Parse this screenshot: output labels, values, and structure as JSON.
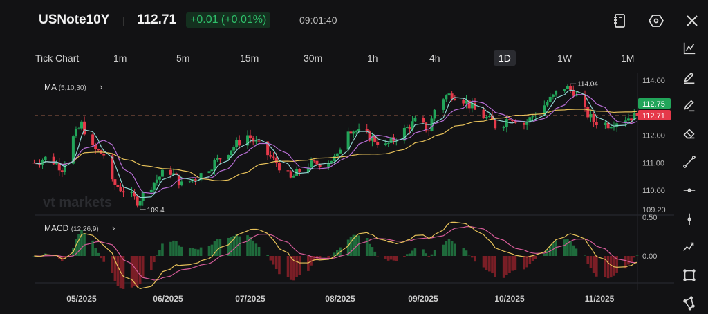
{
  "header": {
    "symbol": "USNote10Y",
    "price": "112.71",
    "change": "+0.01 (+0.01%)",
    "time": "09:01:40",
    "icons": [
      "notebook-icon",
      "settings-hexagon-icon",
      "close-icon"
    ]
  },
  "timeframes": [
    {
      "label": "Tick Chart"
    },
    {
      "label": "1m"
    },
    {
      "label": "5m"
    },
    {
      "label": "15m"
    },
    {
      "label": "30m"
    },
    {
      "label": "1h"
    },
    {
      "label": "4h"
    },
    {
      "label": "1D",
      "active": true
    },
    {
      "label": "1W"
    },
    {
      "label": "1M"
    }
  ],
  "indicators": {
    "ma": {
      "name": "MA",
      "params": "(5,10,30)"
    },
    "macd": {
      "name": "MACD",
      "params": "(12,26,9)"
    }
  },
  "watermark": "vt markets",
  "toolbar": [
    "indicator-chart-icon",
    "pencil-icon",
    "pencil-line-icon",
    "eraser-icon",
    "trend-line-icon",
    "horizontal-line-icon",
    "vertical-line-icon",
    "polyline-icon",
    "rectangle-icon",
    "polygon-icon"
  ],
  "colors": {
    "up": "#22a55a",
    "down": "#e5394a",
    "ma5": "#8fd3d0",
    "ma10": "#b86fd6",
    "ma30": "#e8c25a",
    "macd_dif": "#e8c25a",
    "macd_dea": "#d65c9a",
    "hist_up": "#1f6b3c",
    "hist_down": "#7a1e26"
  },
  "chart_data": {
    "type": "candlestick",
    "y_ticks": [
      "114.00",
      "113.00",
      "112.00",
      "111.00",
      "110.00",
      "109.20"
    ],
    "ylim": [
      109.2,
      114.6
    ],
    "x_ticks": [
      "05/2025",
      "06/2025",
      "07/2025",
      "08/2025",
      "09/2025",
      "10/2025",
      "11/2025"
    ],
    "high_label": "114.04",
    "low_label": "109.4",
    "last_price_tags": [
      {
        "value": "112.75",
        "color": "#22a55a"
      },
      {
        "value": "112.71",
        "color": "#e5394a"
      }
    ],
    "macd_ticks": [
      "0.50",
      "0.00"
    ],
    "approx_close": [
      [
        "2025-04-14",
        111.0
      ],
      [
        "2025-04-19",
        111.2
      ],
      [
        "2025-04-24",
        110.8
      ],
      [
        "2025-04-28",
        111.9
      ],
      [
        "2025-05-01",
        112.4
      ],
      [
        "2025-05-05",
        111.5
      ],
      [
        "2025-05-09",
        111.3
      ],
      [
        "2025-05-11",
        110.3
      ],
      [
        "2025-05-16",
        110.0
      ],
      [
        "2025-05-21",
        109.6
      ],
      [
        "2025-05-26",
        110.2
      ],
      [
        "2025-06-01",
        110.8
      ],
      [
        "2025-06-06",
        110.2
      ],
      [
        "2025-06-12",
        110.5
      ],
      [
        "2025-06-18",
        111.0
      ],
      [
        "2025-06-25",
        111.6
      ],
      [
        "2025-06-30",
        112.0
      ],
      [
        "2025-07-05",
        111.5
      ],
      [
        "2025-07-10",
        111.0
      ],
      [
        "2025-07-15",
        110.4
      ],
      [
        "2025-07-20",
        110.9
      ],
      [
        "2025-07-26",
        111.0
      ],
      [
        "2025-07-31",
        111.2
      ],
      [
        "2025-08-03",
        112.3
      ],
      [
        "2025-08-08",
        112.1
      ],
      [
        "2025-08-13",
        111.9
      ],
      [
        "2025-08-18",
        111.6
      ],
      [
        "2025-08-24",
        112.1
      ],
      [
        "2025-08-29",
        112.5
      ],
      [
        "2025-09-03",
        112.2
      ],
      [
        "2025-09-06",
        113.3
      ],
      [
        "2025-09-11",
        113.5
      ],
      [
        "2025-09-15",
        113.3
      ],
      [
        "2025-09-20",
        112.8
      ],
      [
        "2025-09-25",
        112.5
      ],
      [
        "2025-09-27",
        112.2
      ],
      [
        "2025-10-01",
        112.7
      ],
      [
        "2025-10-06",
        112.4
      ],
      [
        "2025-10-11",
        112.9
      ],
      [
        "2025-10-16",
        113.4
      ],
      [
        "2025-10-19",
        113.8
      ],
      [
        "2025-10-23",
        113.6
      ],
      [
        "2025-10-26",
        113.0
      ],
      [
        "2025-10-30",
        112.5
      ],
      [
        "2025-11-04",
        112.4
      ],
      [
        "2025-11-09",
        112.6
      ],
      [
        "2025-11-14",
        112.71
      ]
    ]
  }
}
